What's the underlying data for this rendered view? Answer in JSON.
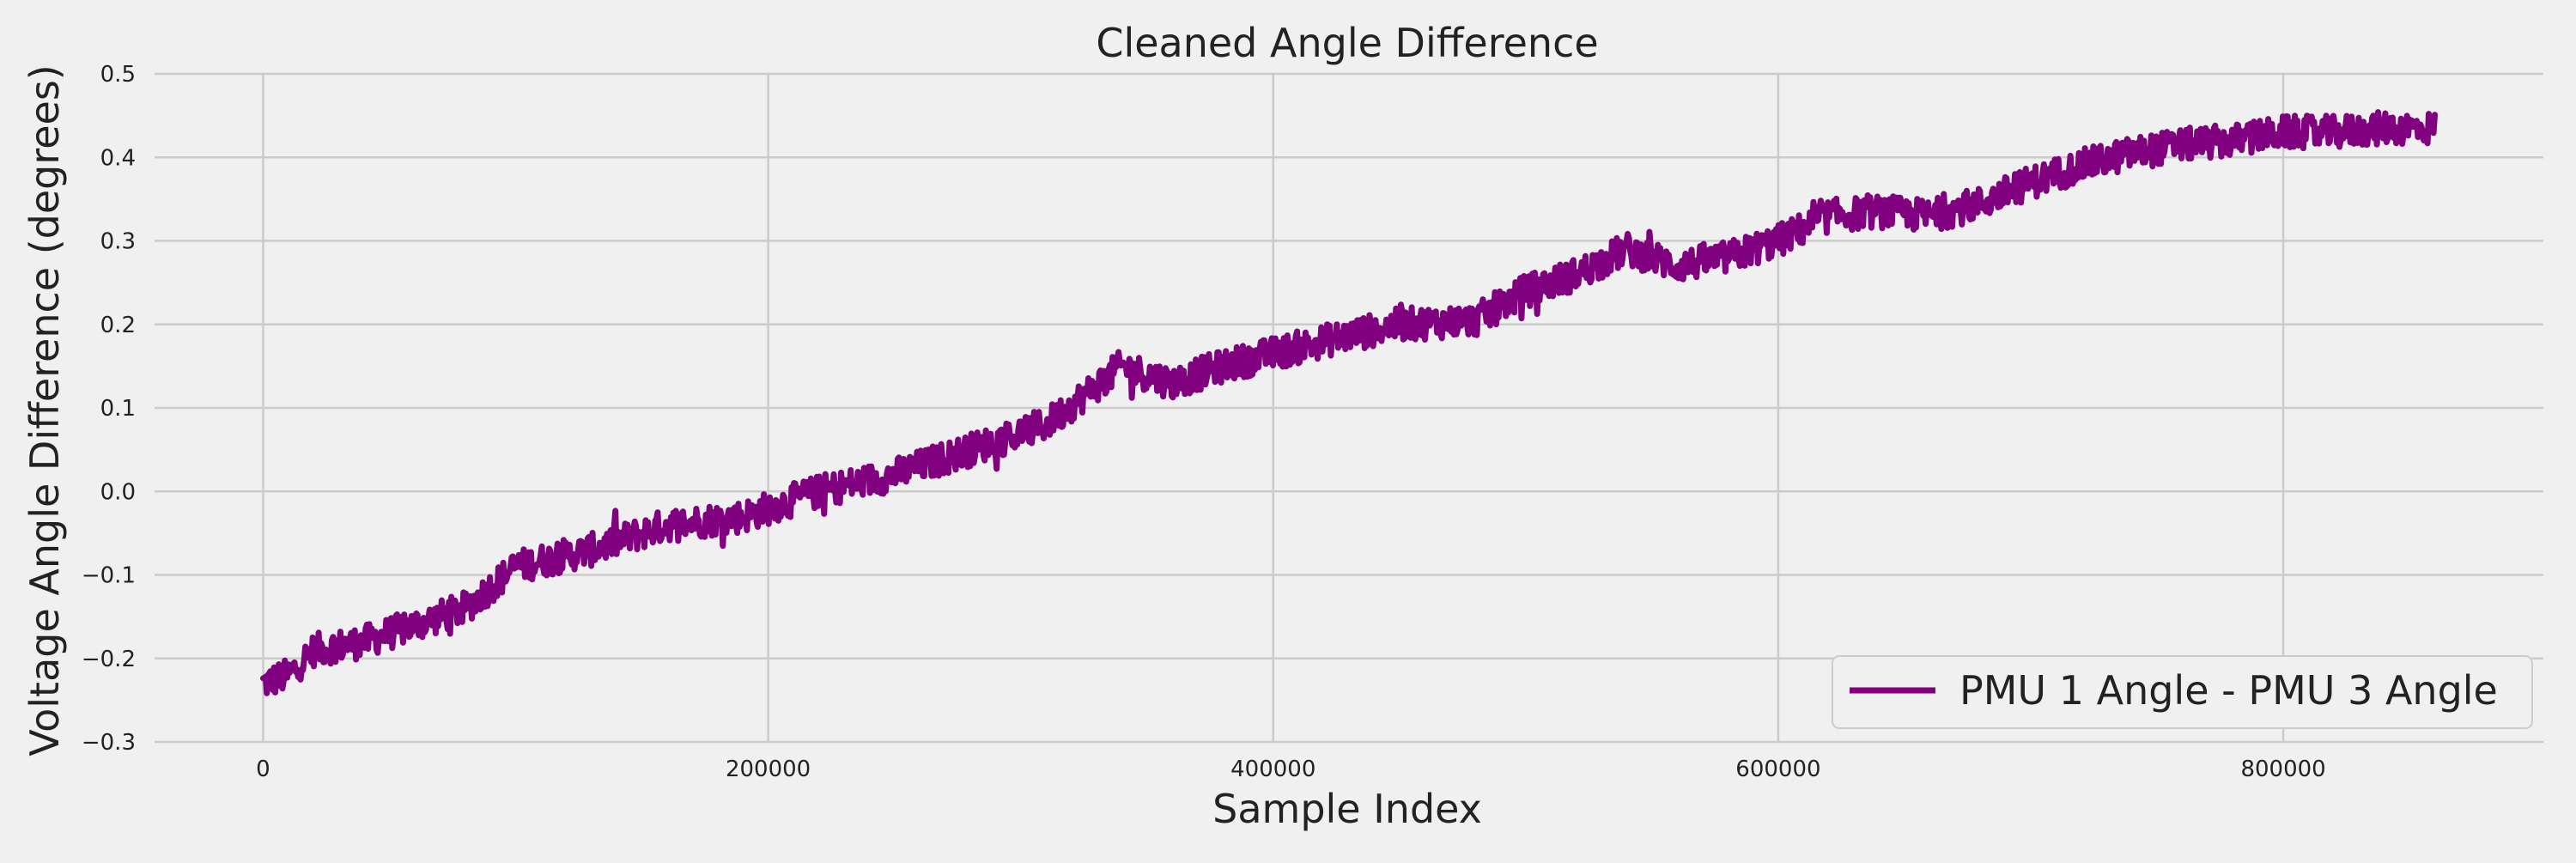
{
  "chart_data": {
    "type": "line",
    "title": "Cleaned Angle Difference",
    "xlabel": "Sample Index",
    "ylabel": "Voltage Angle Difference (degrees)",
    "xlim": [
      -43000,
      903000
    ],
    "ylim": [
      -0.3,
      0.5
    ],
    "xticks": [
      0,
      200000,
      400000,
      600000,
      800000
    ],
    "xtick_labels": [
      "0",
      "200000",
      "400000",
      "600000",
      "800000"
    ],
    "yticks": [
      -0.3,
      -0.2,
      -0.1,
      0.0,
      0.1,
      0.2,
      0.3,
      0.4,
      0.5
    ],
    "ytick_labels": [
      "−0.3",
      "−0.2",
      "−0.1",
      "0.0",
      "0.1",
      "0.2",
      "0.3",
      "0.4",
      "0.5"
    ],
    "grid": true,
    "legend_position": "lower-right",
    "series": [
      {
        "name": "PMU 1 Angle - PMU 3 Angle",
        "color": "#800080",
        "noise_band": 0.02,
        "x": [
          0,
          10000,
          20000,
          40000,
          60000,
          80000,
          100000,
          130000,
          160000,
          190000,
          220000,
          250000,
          280000,
          310000,
          340000,
          360000,
          380000,
          400000,
          420000,
          450000,
          480000,
          500000,
          520000,
          540000,
          560000,
          580000,
          600000,
          620000,
          640000,
          660000,
          680000,
          700000,
          720000,
          740000,
          760000,
          780000,
          800000,
          820000,
          840000,
          860000
        ],
        "y": [
          -0.23,
          -0.22,
          -0.19,
          -0.18,
          -0.16,
          -0.14,
          -0.09,
          -0.07,
          -0.04,
          -0.03,
          0.0,
          0.02,
          0.05,
          0.08,
          0.15,
          0.13,
          0.15,
          0.165,
          0.18,
          0.2,
          0.205,
          0.24,
          0.26,
          0.29,
          0.27,
          0.28,
          0.3,
          0.33,
          0.335,
          0.33,
          0.345,
          0.37,
          0.39,
          0.405,
          0.415,
          0.42,
          0.43,
          0.43,
          0.435,
          0.435
        ]
      }
    ]
  }
}
